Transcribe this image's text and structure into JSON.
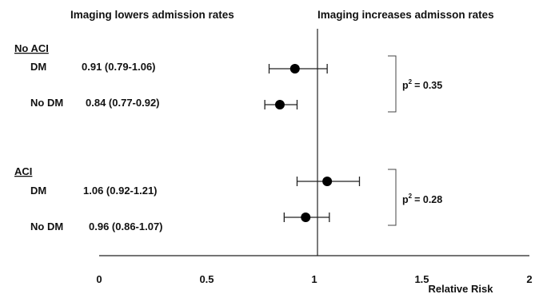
{
  "chart_data": {
    "type": "forest",
    "header_left": "Imaging lowers admission rates",
    "header_right": "Imaging increases admisson rates",
    "xlabel": "Relative Risk",
    "xlim": [
      0,
      2
    ],
    "xticks": [
      "0",
      "0.5",
      "1",
      "1.5",
      "2"
    ],
    "reference_line": 1,
    "groups": [
      {
        "name": "No ACI",
        "rows": [
          {
            "label": "DM",
            "estimate_text": "0.91 (0.79-1.06)",
            "estimate": 0.91,
            "ci_low": 0.79,
            "ci_high": 1.06
          },
          {
            "label": "No DM",
            "estimate_text": "0.84 (0.77-0.92)",
            "estimate": 0.84,
            "ci_low": 0.77,
            "ci_high": 0.92
          }
        ],
        "p_label": "p",
        "p_sup": "2",
        "p_value": "= 0.35"
      },
      {
        "name": "ACI",
        "rows": [
          {
            "label": "DM",
            "estimate_text": "1.06 (0.92-1.21)",
            "estimate": 1.06,
            "ci_low": 0.92,
            "ci_high": 1.21
          },
          {
            "label": "No DM",
            "estimate_text": "0.96 (0.86-1.07)",
            "estimate": 0.96,
            "ci_low": 0.86,
            "ci_high": 1.07
          }
        ],
        "p_label": "p",
        "p_sup": "2",
        "p_value": "= 0.28"
      }
    ]
  }
}
